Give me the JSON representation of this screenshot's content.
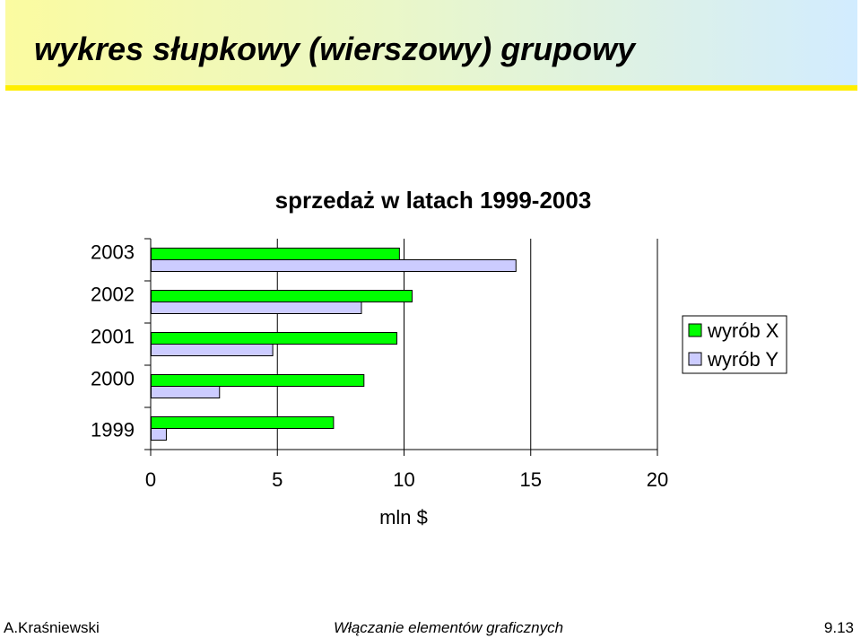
{
  "slide": {
    "title": "wykres słupkowy (wierszowy) grupowy"
  },
  "footer": {
    "author": "A.Kraśniewski",
    "topic": "Włączanie elementów graficznych",
    "page": "9.13"
  },
  "chart_data": {
    "type": "bar",
    "orientation": "horizontal",
    "title": "sprzedaż w latach 1999-2003",
    "xlabel": "mln $",
    "ylabel": "",
    "categories": [
      "1999",
      "2000",
      "2001",
      "2002",
      "2003"
    ],
    "series": [
      {
        "name": "wyrób X",
        "color": "#00ff00",
        "values": [
          7.2,
          8.4,
          9.7,
          10.3,
          9.8
        ]
      },
      {
        "name": "wyrób Y",
        "color": "#ccccff",
        "values": [
          0.6,
          2.7,
          4.8,
          8.3,
          14.4
        ]
      }
    ],
    "xlim": [
      0,
      20
    ],
    "xticks": [
      "0",
      "5",
      "10",
      "15",
      "20"
    ],
    "grid": true,
    "legend": "right"
  }
}
